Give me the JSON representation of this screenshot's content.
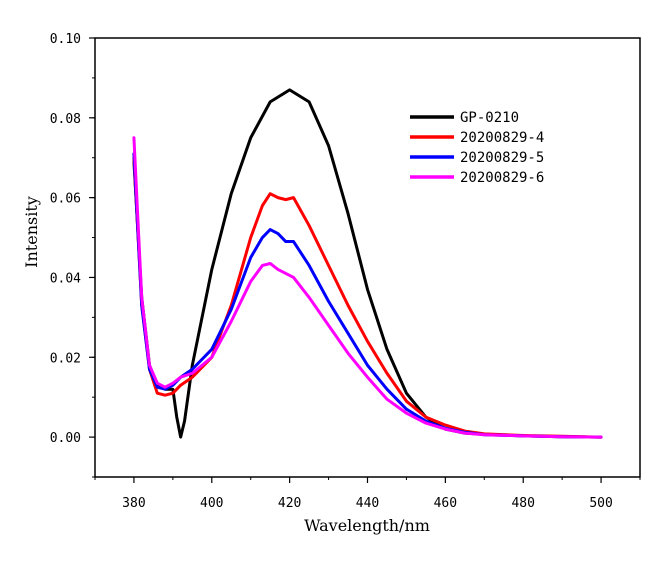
{
  "chart_data": {
    "type": "line",
    "title": "",
    "xlabel": "Wavelength/nm",
    "ylabel": "Intensity",
    "xlim": [
      370,
      510
    ],
    "ylim": [
      -0.01,
      0.1
    ],
    "xticks": [
      380,
      400,
      420,
      440,
      460,
      480,
      500
    ],
    "xtick_labels": [
      "380",
      "400",
      "420",
      "440",
      "460",
      "480",
      "500"
    ],
    "yticks": [
      0.0,
      0.02,
      0.04,
      0.06,
      0.08,
      0.1
    ],
    "ytick_labels": [
      "0.00",
      "0.02",
      "0.04",
      "0.06",
      "0.08",
      "0.10"
    ],
    "grid": false,
    "legend_position": "top-right",
    "series": [
      {
        "name": "GP-0210",
        "color": "#000000",
        "x": [
          380,
          382,
          384,
          386,
          388,
          390,
          391,
          392,
          393,
          395,
          400,
          405,
          410,
          415,
          420,
          425,
          430,
          435,
          440,
          445,
          450,
          455,
          460,
          465,
          470,
          480,
          490,
          500
        ],
        "y": [
          0.069,
          0.035,
          0.018,
          0.013,
          0.012,
          0.012,
          0.005,
          0.0,
          0.004,
          0.018,
          0.042,
          0.061,
          0.075,
          0.084,
          0.087,
          0.084,
          0.073,
          0.056,
          0.037,
          0.022,
          0.011,
          0.005,
          0.002,
          0.001,
          0.0007,
          0.0003,
          0.0001,
          0.0
        ]
      },
      {
        "name": "20200829-4",
        "color": "#ff0000",
        "x": [
          380,
          382,
          384,
          386,
          388,
          390,
          392,
          395,
          400,
          405,
          410,
          413,
          415,
          417,
          419,
          421,
          425,
          430,
          435,
          440,
          445,
          450,
          455,
          460,
          465,
          470,
          480,
          490,
          500
        ],
        "y": [
          0.07,
          0.033,
          0.017,
          0.011,
          0.0105,
          0.011,
          0.013,
          0.015,
          0.02,
          0.033,
          0.05,
          0.058,
          0.061,
          0.06,
          0.0595,
          0.06,
          0.053,
          0.043,
          0.033,
          0.024,
          0.016,
          0.009,
          0.005,
          0.003,
          0.0015,
          0.0008,
          0.0004,
          0.0002,
          0.0
        ]
      },
      {
        "name": "20200829-5",
        "color": "#0000ff",
        "x": [
          380,
          382,
          384,
          386,
          388,
          390,
          392,
          395,
          400,
          405,
          410,
          413,
          415,
          417,
          419,
          421,
          425,
          430,
          435,
          440,
          445,
          450,
          455,
          460,
          465,
          470,
          480,
          490,
          500
        ],
        "y": [
          0.071,
          0.033,
          0.017,
          0.0125,
          0.012,
          0.013,
          0.015,
          0.017,
          0.022,
          0.032,
          0.045,
          0.05,
          0.052,
          0.051,
          0.049,
          0.049,
          0.043,
          0.034,
          0.026,
          0.018,
          0.012,
          0.007,
          0.004,
          0.0022,
          0.0012,
          0.0006,
          0.0003,
          0.0001,
          0.0
        ]
      },
      {
        "name": "20200829-6",
        "color": "#ff00ff",
        "x": [
          380,
          382,
          384,
          386,
          388,
          390,
          392,
          395,
          400,
          405,
          410,
          413,
          415,
          417,
          419,
          421,
          425,
          430,
          435,
          440,
          445,
          450,
          455,
          460,
          465,
          470,
          480,
          490,
          500
        ],
        "y": [
          0.075,
          0.035,
          0.018,
          0.0135,
          0.0125,
          0.0135,
          0.015,
          0.016,
          0.02,
          0.029,
          0.039,
          0.043,
          0.0435,
          0.042,
          0.041,
          0.04,
          0.035,
          0.028,
          0.021,
          0.015,
          0.0095,
          0.006,
          0.0035,
          0.002,
          0.001,
          0.0006,
          0.0003,
          0.0001,
          0.0
        ]
      }
    ]
  }
}
